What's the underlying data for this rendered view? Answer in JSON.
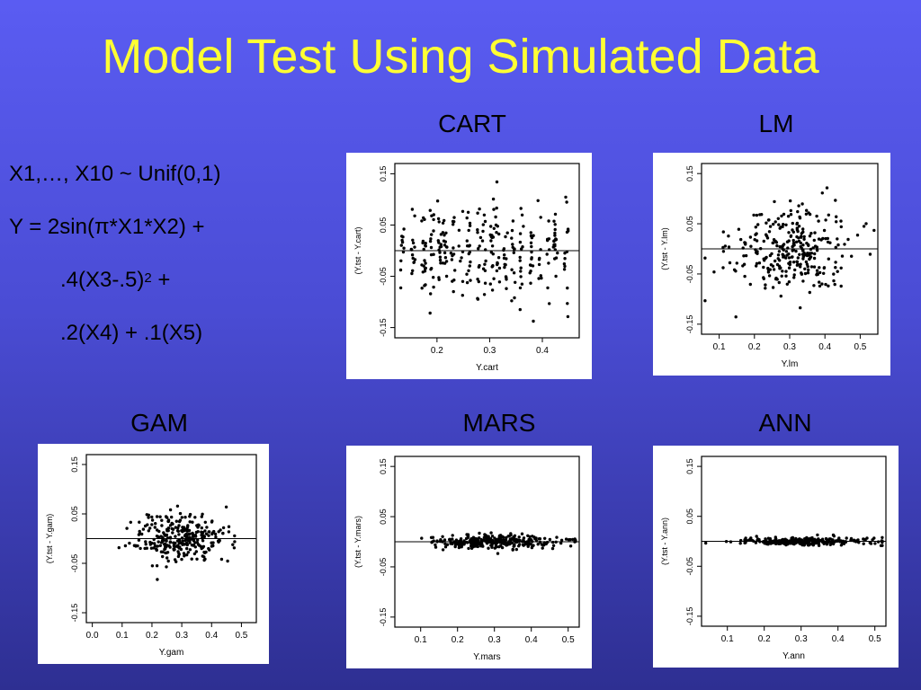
{
  "slide": {
    "title": "Model Test Using Simulated Data",
    "formula": {
      "line1": "X1,…, X10 ~ Unif(0,1)",
      "line2": "Y = 2sin(π*X1*X2) +",
      "line3": ".4(X3-.5)",
      "line3_sup": "2",
      "line3_tail": " +",
      "line4": ".2(X4) + .1(X5)"
    }
  },
  "chart_data": [
    {
      "type": "scatter",
      "title": "CART",
      "xlabel": "Y.cart",
      "ylabel": "(Y.tst - Y.cart)",
      "xticks": [
        0.2,
        0.3,
        0.4
      ],
      "xlim": [
        0.12,
        0.47
      ],
      "yticks": [
        0.15,
        0.05,
        -0.05,
        -0.15
      ],
      "ylim": [
        -0.17,
        0.17
      ],
      "hline": 0,
      "grid": false,
      "x_levels": [
        0.135,
        0.155,
        0.175,
        0.19,
        0.205,
        0.215,
        0.23,
        0.245,
        0.26,
        0.28,
        0.29,
        0.305,
        0.315,
        0.33,
        0.345,
        0.36,
        0.38,
        0.395,
        0.41,
        0.425,
        0.445
      ],
      "x_spread": 0.004,
      "y_sd": 0.045,
      "n_points": 300,
      "tight": false
    },
    {
      "type": "scatter",
      "title": "LM",
      "xlabel": "Y.lm",
      "ylabel": "(Y.tst - Y.lm)",
      "xticks": [
        0.1,
        0.2,
        0.3,
        0.4,
        0.5
      ],
      "xlim": [
        0.05,
        0.55
      ],
      "yticks": [
        0.15,
        0.05,
        -0.05,
        -0.15
      ],
      "ylim": [
        -0.17,
        0.17
      ],
      "hline": 0,
      "grid": false,
      "x_center": 0.3,
      "x_sd": 0.085,
      "y_sd": 0.045,
      "n_points": 300
    },
    {
      "type": "scatter",
      "title": "GAM",
      "xlabel": "Y.gam",
      "ylabel": "(Y.tst - Y.gam)",
      "xticks": [
        0.0,
        0.1,
        0.2,
        0.3,
        0.4,
        0.5
      ],
      "xlim": [
        -0.02,
        0.55
      ],
      "yticks": [
        0.15,
        0.05,
        -0.05,
        -0.15
      ],
      "ylim": [
        -0.17,
        0.17
      ],
      "hline": 0,
      "grid": false,
      "x_center": 0.3,
      "x_sd": 0.08,
      "y_sd": 0.025,
      "n_points": 300
    },
    {
      "type": "scatter",
      "title": "MARS",
      "xlabel": "Y.mars",
      "ylabel": "(Y.tst - Y.mars)",
      "xticks": [
        0.1,
        0.2,
        0.3,
        0.4,
        0.5
      ],
      "xlim": [
        0.03,
        0.53
      ],
      "yticks": [
        0.15,
        0.05,
        -0.05,
        -0.15
      ],
      "ylim": [
        -0.17,
        0.17
      ],
      "hline": 0,
      "grid": false,
      "x_center": 0.3,
      "x_sd": 0.085,
      "y_sd": 0.007,
      "n_points": 300
    },
    {
      "type": "scatter",
      "title": "ANN",
      "xlabel": "Y.ann",
      "ylabel": "(Y.tst - Y.ann)",
      "xticks": [
        0.1,
        0.2,
        0.3,
        0.4,
        0.5
      ],
      "xlim": [
        0.03,
        0.53
      ],
      "yticks": [
        0.15,
        0.05,
        -0.05,
        -0.15
      ],
      "ylim": [
        -0.17,
        0.17
      ],
      "hline": 0,
      "grid": false,
      "x_center": 0.3,
      "x_sd": 0.09,
      "y_sd": 0.004,
      "n_points": 300
    }
  ]
}
